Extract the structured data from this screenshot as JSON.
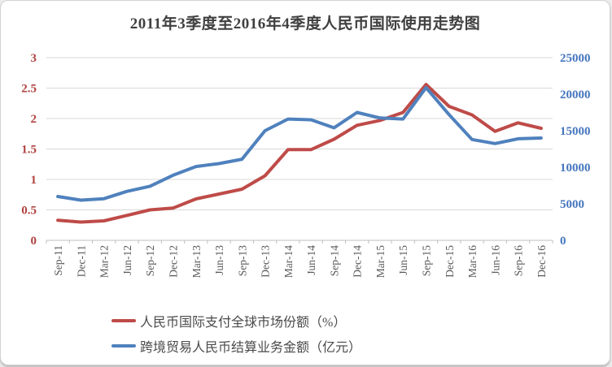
{
  "chart_data": {
    "type": "line",
    "title": "2011年3季度至2016年4季度人民币国际使用走势图",
    "categories": [
      "Sep-11",
      "Dec-11",
      "Mar-12",
      "Jun-12",
      "Sep-12",
      "Dec-12",
      "Mar-13",
      "Jun-13",
      "Sep-13",
      "Dec-13",
      "Mar-14",
      "Jun-14",
      "Sep-14",
      "Dec-14",
      "Mar-15",
      "Jun-15",
      "Sep-15",
      "Dec-15",
      "Mar-16",
      "Jun-16",
      "Sep-16",
      "Dec-16"
    ],
    "series": [
      {
        "name": "人民币国际支付全球市场份额（%）",
        "axis": "left",
        "color": "#be4b48",
        "values": [
          0.33,
          0.3,
          0.32,
          0.41,
          0.5,
          0.53,
          0.68,
          0.76,
          0.84,
          1.06,
          1.49,
          1.49,
          1.66,
          1.89,
          1.97,
          2.1,
          2.56,
          2.2,
          2.06,
          1.79,
          1.93,
          1.84
        ]
      },
      {
        "name": "跨境贸易人民币结算业务金额（亿元）",
        "axis": "right",
        "color": "#4f81bd",
        "values": [
          6000,
          5500,
          5700,
          6700,
          7400,
          8900,
          10100,
          10500,
          11100,
          15000,
          16600,
          16500,
          15400,
          17500,
          16750,
          16600,
          20900,
          17200,
          13800,
          13250,
          13900,
          14000
        ]
      }
    ],
    "left_axis": {
      "ticks": [
        0,
        0.5,
        1,
        1.5,
        2,
        2.5,
        3
      ],
      "range": [
        0,
        3
      ],
      "label_color": "#b04341"
    },
    "right_axis": {
      "ticks": [
        0,
        5000,
        10000,
        15000,
        20000,
        25000
      ],
      "range": [
        0,
        25000
      ],
      "label_color": "#4576be"
    },
    "x_axis_label_color": "#595959",
    "grid": true,
    "gridline_color": "#d9d9d9",
    "axis_line_color": "#bfbfbf",
    "legend_position": "bottom"
  }
}
